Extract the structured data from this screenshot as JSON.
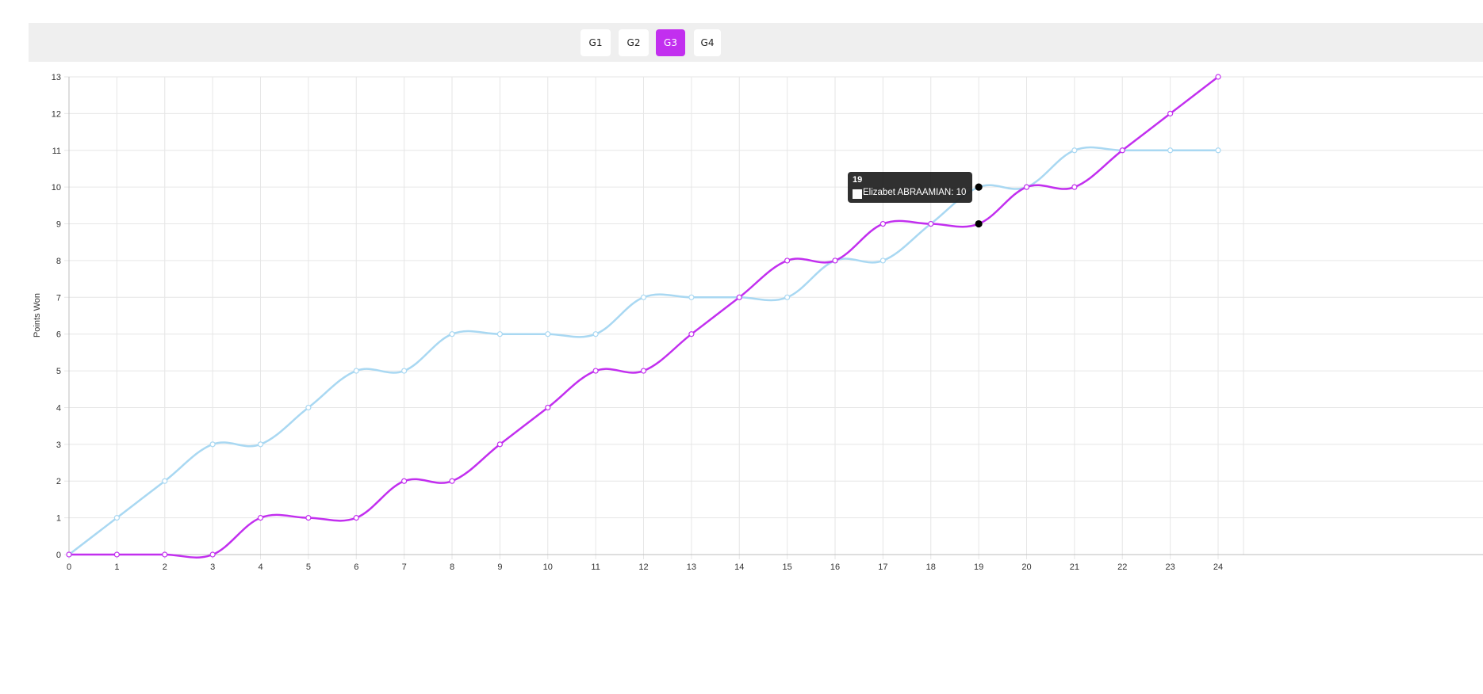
{
  "game_buttons": [
    {
      "label": "G1",
      "active": false
    },
    {
      "label": "G2",
      "active": false
    },
    {
      "label": "G3",
      "active": true
    },
    {
      "label": "G4",
      "active": false
    }
  ],
  "colors": {
    "accent": "#c22fef",
    "series_light": "#a9d8f2",
    "series_purple": "#c22fef",
    "grid": "#e6e6e6",
    "toolbar_bg": "#efefef"
  },
  "tooltip": {
    "title": "19",
    "series_name": "Elizabet ABRAAMIAN",
    "value": "10",
    "text": "Elizabet ABRAAMIAN: 10"
  },
  "chart_data": {
    "type": "line",
    "title": "",
    "xlabel": "",
    "ylabel": "Points Won",
    "x": [
      0,
      1,
      2,
      3,
      4,
      5,
      6,
      7,
      8,
      9,
      10,
      11,
      12,
      13,
      14,
      15,
      16,
      17,
      18,
      19,
      20,
      21,
      22,
      23,
      24
    ],
    "xlim": [
      0,
      24
    ],
    "ylim": [
      0,
      13
    ],
    "grid": true,
    "curved": true,
    "series": [
      {
        "name": "Elizabet ABRAAMIAN",
        "color": "#a9d8f2",
        "values": [
          0,
          1,
          2,
          3,
          3,
          4,
          5,
          5,
          6,
          6,
          6,
          6,
          7,
          7,
          7,
          7,
          8,
          8,
          9,
          10,
          10,
          11,
          11,
          11,
          11
        ]
      },
      {
        "name": "",
        "color": "#c22fef",
        "values": [
          0,
          0,
          0,
          0,
          1,
          1,
          1,
          2,
          2,
          3,
          4,
          5,
          5,
          6,
          7,
          8,
          8,
          9,
          9,
          9,
          10,
          10,
          11,
          12,
          13
        ]
      }
    ],
    "highlight_x": 19
  }
}
